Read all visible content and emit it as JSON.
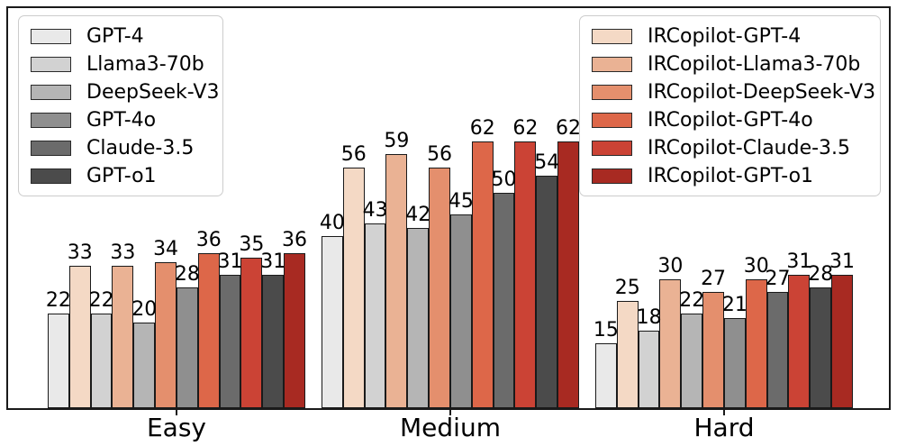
{
  "figure": {
    "background": "#ffffff",
    "frame_color": "#1a1a1a"
  },
  "chart_data": {
    "type": "bar",
    "title": "",
    "xlabel": "",
    "ylabel": "",
    "categories": [
      "Easy",
      "Medium",
      "Hard"
    ],
    "series": [
      {
        "name": "GPT-4",
        "color": "#e9e9e9",
        "values": [
          22,
          40,
          15
        ]
      },
      {
        "name": "IRCopilot-GPT-4",
        "color": "#f4d9c5",
        "values": [
          33,
          56,
          25
        ]
      },
      {
        "name": "Llama3-70b",
        "color": "#d2d2d2",
        "values": [
          22,
          43,
          18
        ]
      },
      {
        "name": "IRCopilot-Llama3-70b",
        "color": "#eab294",
        "values": [
          33,
          59,
          30
        ]
      },
      {
        "name": "DeepSeek-V3",
        "color": "#b5b5b5",
        "values": [
          20,
          42,
          22
        ]
      },
      {
        "name": "IRCopilot-DeepSeek-V3",
        "color": "#e48f6d",
        "values": [
          34,
          56,
          27
        ]
      },
      {
        "name": "GPT-4o",
        "color": "#8f8f8f",
        "values": [
          28,
          45,
          21
        ]
      },
      {
        "name": "IRCopilot-GPT-4o",
        "color": "#dd6749",
        "values": [
          36,
          62,
          30
        ]
      },
      {
        "name": "Claude-3.5",
        "color": "#6b6b6b",
        "values": [
          31,
          50,
          27
        ]
      },
      {
        "name": "IRCopilot-Claude-3.5",
        "color": "#cb4335",
        "values": [
          35,
          62,
          31
        ]
      },
      {
        "name": "GPT-o1",
        "color": "#4b4b4b",
        "values": [
          31,
          54,
          28
        ]
      },
      {
        "name": "IRCopilot-GPT-o1",
        "color": "#a82a22",
        "values": [
          36,
          62,
          31
        ]
      }
    ],
    "bar_edge_color": "#1a1a1a",
    "bar_labels": true,
    "ylim": [
      0,
      93
    ],
    "grid": false,
    "legend_left": {
      "position": "upper-left",
      "series_indexes": [
        0,
        2,
        4,
        6,
        8,
        10
      ]
    },
    "legend_right": {
      "position": "upper-right",
      "series_indexes": [
        1,
        3,
        5,
        7,
        9,
        11
      ]
    }
  }
}
